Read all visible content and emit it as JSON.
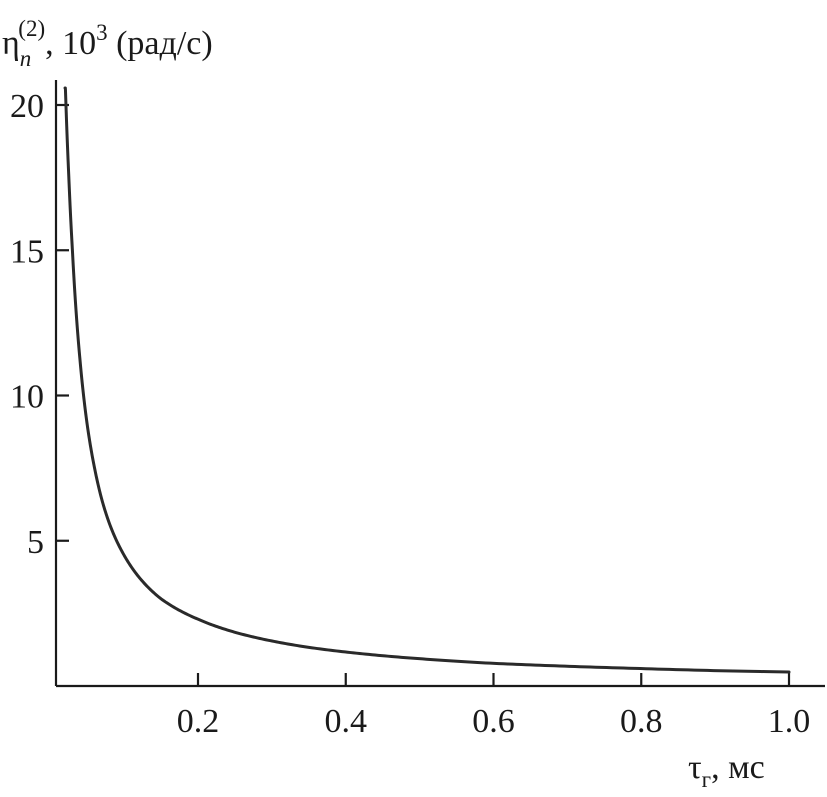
{
  "chart_data": {
    "type": "line",
    "title": "",
    "ylabel": {
      "symbol": "η",
      "superscript": "(2)",
      "subscript": "n",
      "rest": ", 10",
      "power": "3",
      "unit": " (рад/с)"
    },
    "xlabel": {
      "symbol": "τ",
      "subscript": "г",
      "unit": ", мс"
    },
    "xlim": [
      0.0,
      1.05
    ],
    "ylim": [
      0.0,
      21.2
    ],
    "xticks": [
      0.2,
      0.4,
      0.6,
      0.8,
      1.0
    ],
    "xtick_labels": [
      "0.2",
      "0.4",
      "0.6",
      "0.8",
      "1.0"
    ],
    "yticks": [
      5,
      10,
      15,
      20
    ],
    "ytick_labels": [
      "5",
      "10",
      "15",
      "20"
    ],
    "grid": false,
    "series": [
      {
        "x": [
          0.02,
          0.025,
          0.03,
          0.04,
          0.05,
          0.06,
          0.07,
          0.08,
          0.1,
          0.12,
          0.15,
          0.2,
          0.25,
          0.3,
          0.35,
          0.4,
          0.5,
          0.6,
          0.7,
          0.8,
          0.9,
          1.0
        ],
        "y": [
          21.0,
          17.6,
          15.0,
          11.3,
          9.0,
          7.5,
          6.4,
          5.6,
          4.5,
          3.75,
          3.0,
          2.3,
          1.85,
          1.55,
          1.33,
          1.17,
          0.94,
          0.78,
          0.68,
          0.6,
          0.53,
          0.48
        ]
      }
    ]
  }
}
